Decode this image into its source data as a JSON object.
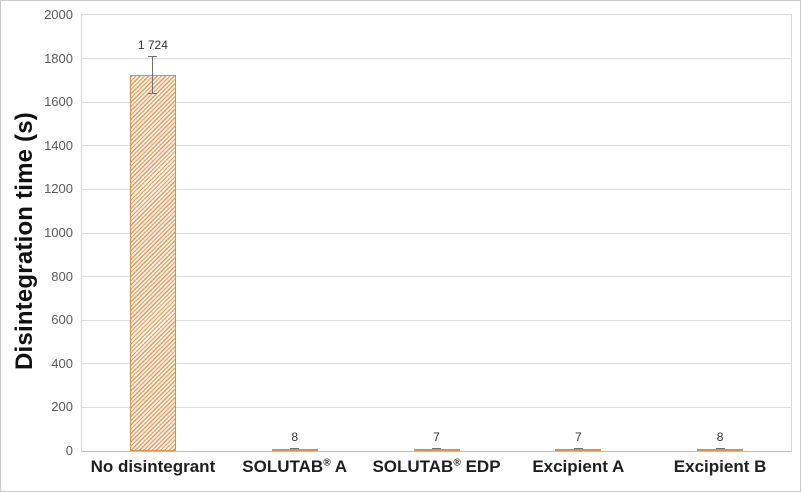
{
  "chart_data": {
    "type": "bar",
    "title": "",
    "ylabel": "Disintegration time (s)",
    "xlabel": "",
    "categories": [
      "No disintegrant",
      "SOLUTAB® A",
      "SOLUTAB® EDP",
      "Excipient A",
      "Excipient B"
    ],
    "values": [
      1724,
      8,
      7,
      7,
      8
    ],
    "value_labels": [
      "1 724",
      "8",
      "7",
      "7",
      "8"
    ],
    "error_bars": [
      85,
      2,
      2,
      2,
      2
    ],
    "ylim": [
      0,
      2000
    ],
    "ytick_step": 200,
    "ytick_labels": [
      "0",
      "200",
      "400",
      "600",
      "800",
      "1000",
      "1200",
      "1400",
      "1600",
      "1800",
      "2000"
    ],
    "grid": "horizontal",
    "legend": "none",
    "bar_style": "diagonal-hatch",
    "colors": {
      "bar_hatch": "#e29c5f",
      "bar_hatch_bg": "#fbf2e7",
      "bar_edge": "#d98f4e",
      "error_bar": "#707070",
      "gridline": "#dcdcdc",
      "plot_border": "#d9d9d9",
      "axis_line": "#bfbfbf",
      "tick_label": "#595959",
      "category_label": "#1f1f1f",
      "data_label": "#333333"
    }
  }
}
